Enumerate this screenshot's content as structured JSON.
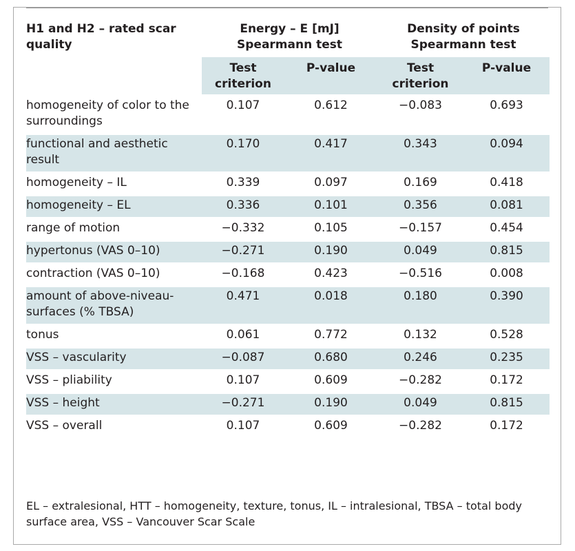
{
  "table": {
    "header": {
      "lead": "H1 and H2 – rated scar quality",
      "group1": "Energy – E [mJ] Spearmann test",
      "group2": "Density of points Spearmann test",
      "sub1": "Test criterion",
      "sub2": "P-value",
      "sub3": "Test criterion",
      "sub4": "P-value"
    },
    "rows": [
      {
        "name": "homogeneity of color to the surroundings",
        "v1": "0.107",
        "v2": "0.612",
        "v3": "−0.083",
        "v4": "0.693"
      },
      {
        "name": "functional and aesthetic result",
        "v1": "0.170",
        "v2": "0.417",
        "v3": "0.343",
        "v4": "0.094"
      },
      {
        "name": "homogeneity – IL",
        "v1": "0.339",
        "v2": "0.097",
        "v3": "0.169",
        "v4": "0.418"
      },
      {
        "name": "homogeneity – EL",
        "v1": "0.336",
        "v2": "0.101",
        "v3": "0.356",
        "v4": "0.081"
      },
      {
        "name": "range of motion",
        "v1": "−0.332",
        "v2": "0.105",
        "v3": "−0.157",
        "v4": "0.454"
      },
      {
        "name": "hypertonus (VAS 0–10)",
        "v1": "−0.271",
        "v2": "0.190",
        "v3": "0.049",
        "v4": "0.815"
      },
      {
        "name": "contraction (VAS 0–10)",
        "v1": "−0.168",
        "v2": "0.423",
        "v3": "−0.516",
        "v4": "0.008"
      },
      {
        "name": "amount of above-niveau-surfaces (% TBSA)",
        "v1": "0.471",
        "v2": "0.018",
        "v3": "0.180",
        "v4": "0.390"
      },
      {
        "name": "tonus",
        "v1": "0.061",
        "v2": "0.772",
        "v3": "0.132",
        "v4": "0.528"
      },
      {
        "name": "VSS – vascularity",
        "v1": "−0.087",
        "v2": "0.680",
        "v3": "0.246",
        "v4": "0.235"
      },
      {
        "name": "VSS – pliability",
        "v1": "0.107",
        "v2": "0.609",
        "v3": "−0.282",
        "v4": "0.172"
      },
      {
        "name": "VSS – height",
        "v1": "−0.271",
        "v2": "0.190",
        "v3": "0.049",
        "v4": "0.815"
      },
      {
        "name": "VSS – overall",
        "v1": "0.107",
        "v2": "0.609",
        "v3": "−0.282",
        "v4": "0.172"
      }
    ]
  },
  "footnote": "EL – extralesional, HTT – homogeneity, texture, tonus, IL – intralesional, TBSA – total body surface area, VSS – Vancouver Scar Scale",
  "colors": {
    "shade": "#d6e5e8",
    "text": "#231f20",
    "border": "#a9a9a9"
  }
}
